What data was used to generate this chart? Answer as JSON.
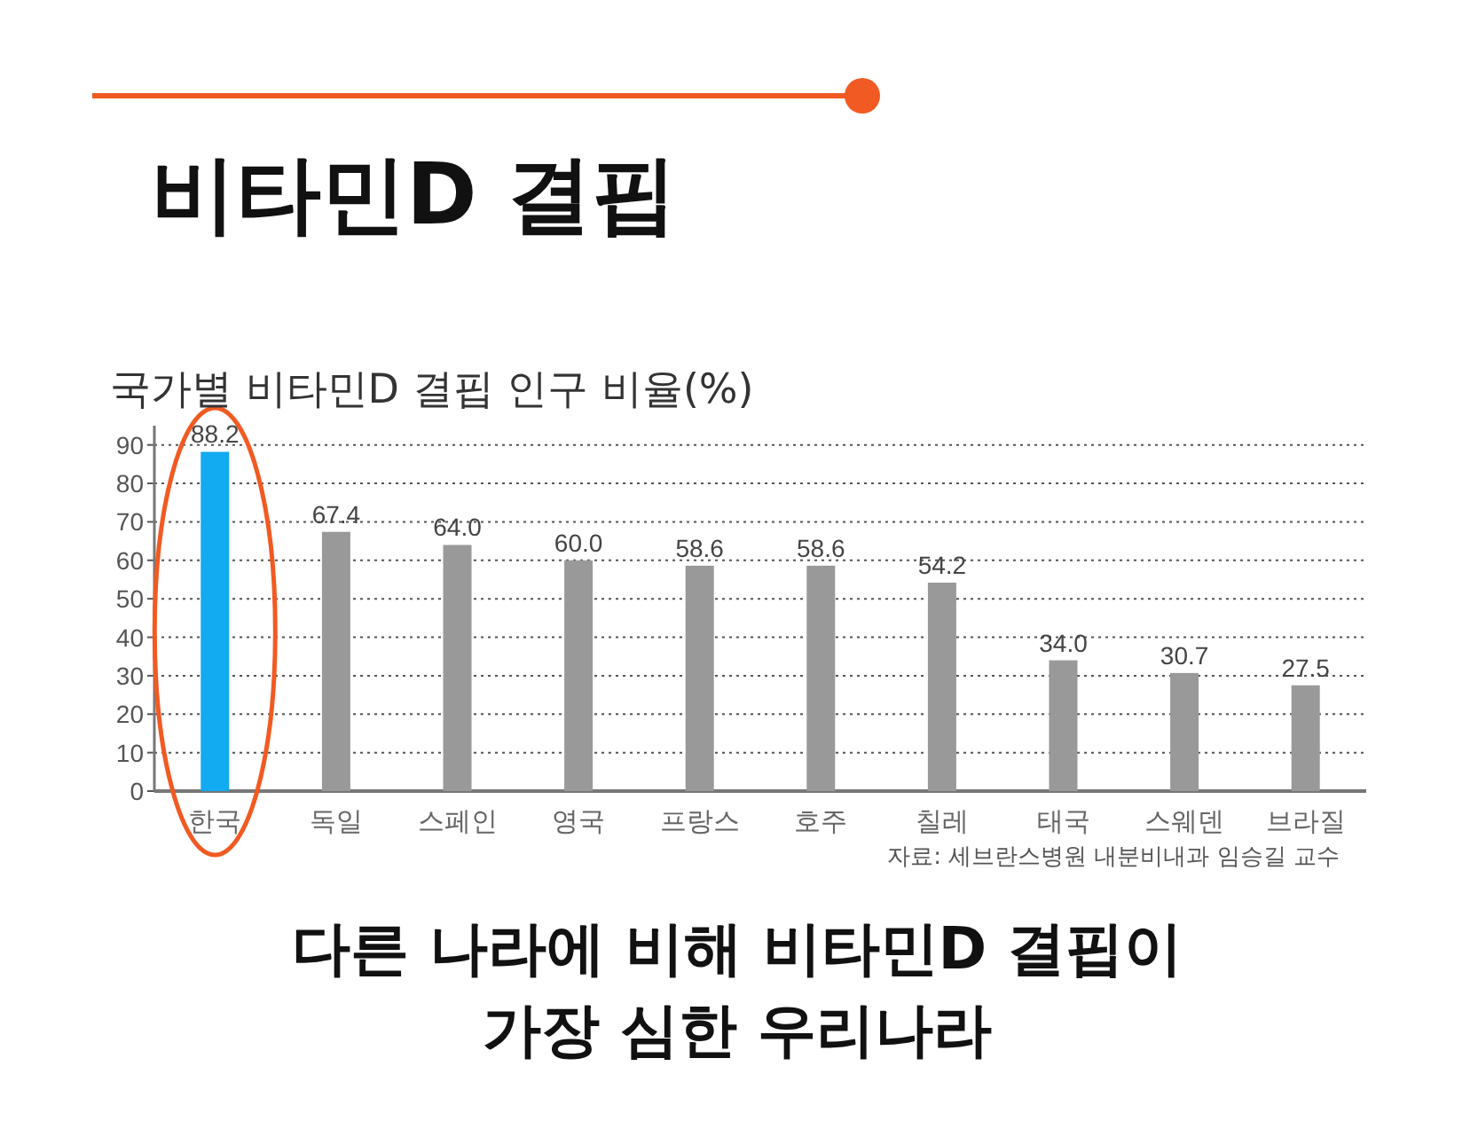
{
  "chart_data": {
    "type": "bar",
    "title": "비타민D 결핍",
    "subtitle": "국가별 비타민D 결핍 인구 비율(%)",
    "categories": [
      "한국",
      "독일",
      "스페인",
      "영국",
      "프랑스",
      "호주",
      "칠레",
      "태국",
      "스웨덴",
      "브라질"
    ],
    "values": [
      88.2,
      67.4,
      64.0,
      60.0,
      58.6,
      58.6,
      54.2,
      34.0,
      30.7,
      27.5
    ],
    "value_labels": [
      "88.2",
      "67.4",
      "64.0",
      "60.0",
      "58.6",
      "58.6",
      "54.2",
      "34.0",
      "30.7",
      "27.5"
    ],
    "colors": [
      "#12aaf0",
      "#999999",
      "#999999",
      "#999999",
      "#999999",
      "#999999",
      "#999999",
      "#999999",
      "#999999",
      "#999999"
    ],
    "ylim": [
      0,
      95
    ],
    "yticks": [
      0,
      10,
      20,
      30,
      40,
      50,
      60,
      70,
      80,
      90
    ],
    "grid": "y",
    "annotations": [
      "자료: 세브란스병원 내분비내과 임승길 교수",
      "다른 나라에 비해 비타민D 결핍이 가장 심한 우리나라"
    ]
  }
}
